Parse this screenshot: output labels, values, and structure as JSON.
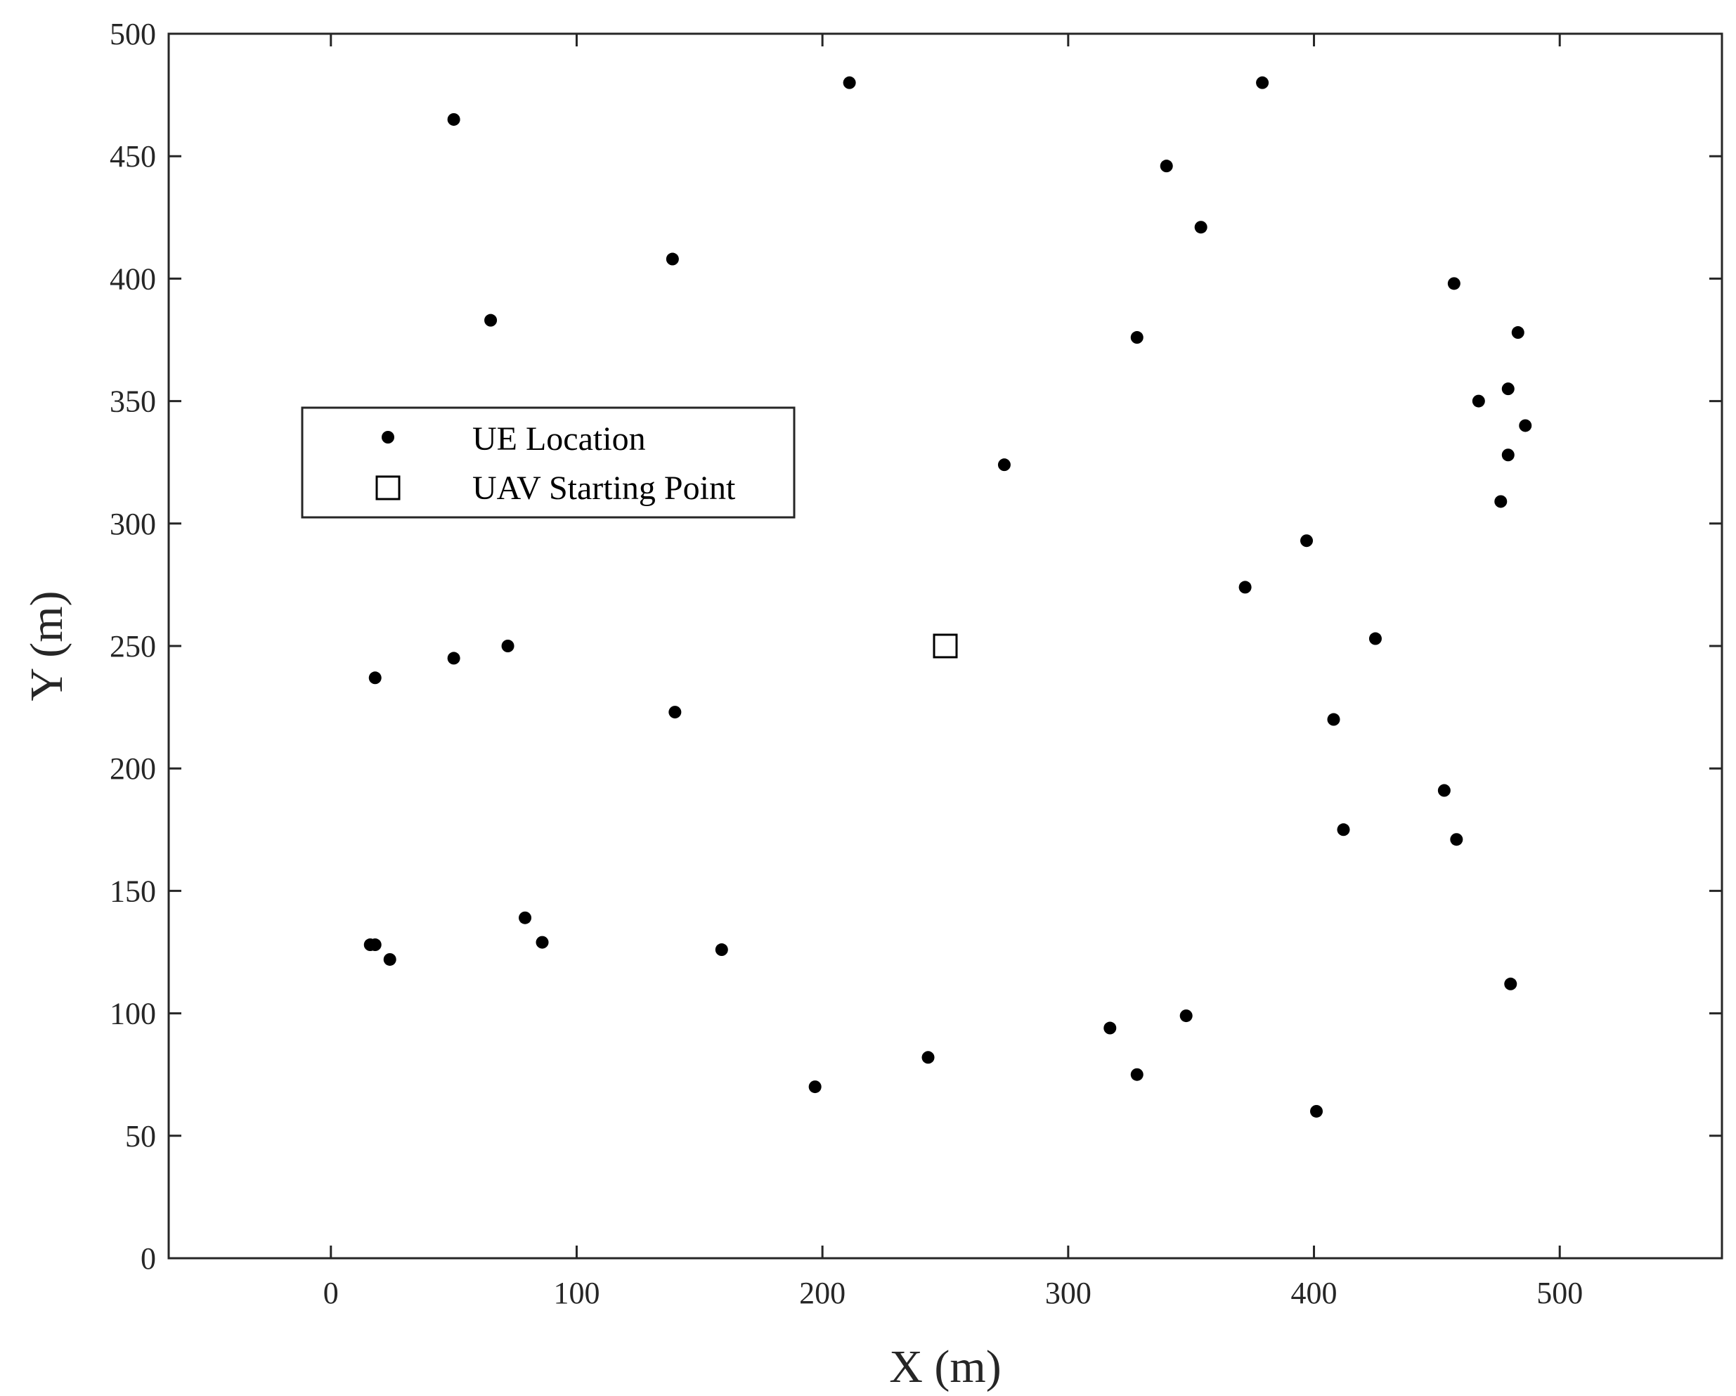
{
  "chart_data": {
    "type": "scatter",
    "xlabel": "X (m)",
    "ylabel": "Y (m)",
    "xlim": [
      -66,
      566
    ],
    "ylim": [
      0,
      500
    ],
    "xticks": [
      "0",
      "100",
      "200",
      "300",
      "400",
      "500"
    ],
    "xtick_values": [
      0,
      100,
      200,
      300,
      400,
      500
    ],
    "yticks": [
      "0",
      "50",
      "100",
      "150",
      "200",
      "250",
      "300",
      "350",
      "400",
      "450",
      "500"
    ],
    "ytick_values": [
      0,
      50,
      100,
      150,
      200,
      250,
      300,
      350,
      400,
      450,
      500
    ],
    "grid": false,
    "legend_position": "upper-left",
    "series": [
      {
        "name": "UE Location",
        "marker": "filled-dot",
        "color": "#000000",
        "points": [
          [
            50,
            465
          ],
          [
            211,
            480
          ],
          [
            379,
            480
          ],
          [
            340,
            446
          ],
          [
            354,
            421
          ],
          [
            139,
            408
          ],
          [
            65,
            383
          ],
          [
            457,
            398
          ],
          [
            328,
            376
          ],
          [
            483,
            378
          ],
          [
            479,
            355
          ],
          [
            467,
            350
          ],
          [
            486,
            340
          ],
          [
            479,
            328
          ],
          [
            274,
            324
          ],
          [
            476,
            309
          ],
          [
            397,
            293
          ],
          [
            372,
            274
          ],
          [
            425,
            253
          ],
          [
            72,
            250
          ],
          [
            50,
            245
          ],
          [
            18,
            237
          ],
          [
            140,
            223
          ],
          [
            408,
            220
          ],
          [
            453,
            191
          ],
          [
            412,
            175
          ],
          [
            458,
            171
          ],
          [
            79,
            139
          ],
          [
            86,
            129
          ],
          [
            16,
            128
          ],
          [
            18,
            128
          ],
          [
            24,
            122
          ],
          [
            159,
            126
          ],
          [
            480,
            112
          ],
          [
            348,
            99
          ],
          [
            317,
            94
          ],
          [
            243,
            82
          ],
          [
            328,
            75
          ],
          [
            197,
            70
          ],
          [
            401,
            60
          ]
        ]
      },
      {
        "name": "UAV Starting Point",
        "marker": "open-square",
        "color": "#000000",
        "points": [
          [
            250,
            250
          ]
        ]
      }
    ]
  }
}
